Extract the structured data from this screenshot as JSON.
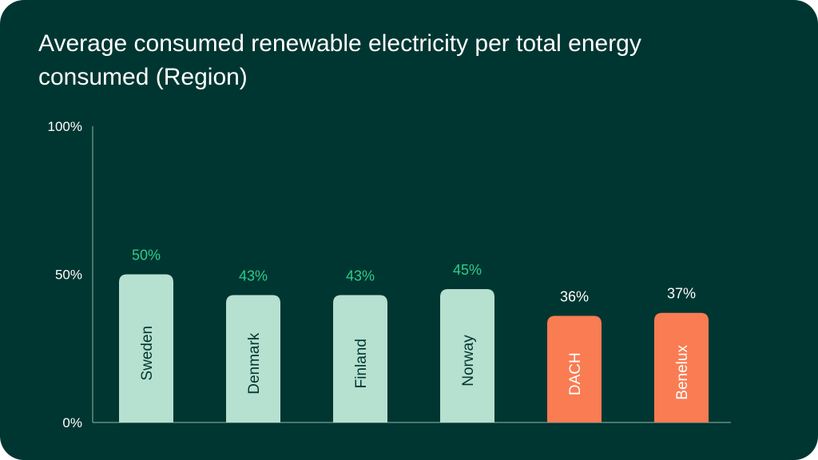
{
  "colors": {
    "background": "#003631",
    "nordic_bar": "#b6e0cf",
    "other_bar": "#f97c53",
    "nordic_label": "#2ecc8a",
    "other_label": "#ffffff",
    "axis": "#8fb5ab"
  },
  "chart_data": {
    "type": "bar",
    "title": "Average consumed renewable electricity per total energy consumed (Region)",
    "xlabel": "",
    "ylabel": "",
    "ylim": [
      0,
      100
    ],
    "yticks": [
      {
        "value": 0,
        "label": "0%"
      },
      {
        "value": 50,
        "label": "50%"
      },
      {
        "value": 100,
        "label": "100%"
      }
    ],
    "grid": false,
    "categories": [
      "Sweden",
      "Denmark",
      "Finland",
      "Norway",
      "DACH",
      "Benelux"
    ],
    "values": [
      50,
      43,
      43,
      45,
      36,
      37
    ],
    "data_labels": [
      "50%",
      "43%",
      "43%",
      "45%",
      "36%",
      "37%"
    ],
    "groups": [
      "nordic",
      "nordic",
      "nordic",
      "nordic",
      "other",
      "other"
    ]
  }
}
